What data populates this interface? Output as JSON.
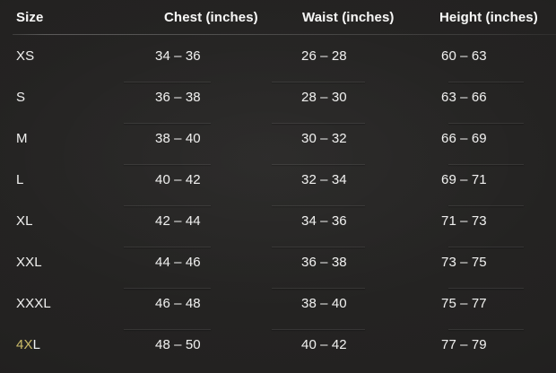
{
  "theme": {
    "background": "#222120",
    "text": "#efefee",
    "header_text": "#f7f7f6",
    "divider": "rgba(255,255,255,0.085)",
    "header_rule": "#4b4a48",
    "four_x_accent": "#c9b966"
  },
  "chart_data": {
    "type": "table",
    "columns": [
      {
        "key": "size",
        "label": "Size"
      },
      {
        "key": "chest",
        "label": "Chest (inches)"
      },
      {
        "key": "waist",
        "label": "Waist (inches)"
      },
      {
        "key": "height",
        "label": "Height (inches)"
      }
    ],
    "rows": [
      {
        "size": "XS",
        "chest": "34 – 36",
        "waist": "26 – 28",
        "height": "60 – 63"
      },
      {
        "size": "S",
        "chest": "36 – 38",
        "waist": "28 – 30",
        "height": "63 – 66"
      },
      {
        "size": "M",
        "chest": "38 – 40",
        "waist": "30 – 32",
        "height": "66 – 69"
      },
      {
        "size": "L",
        "chest": "40 – 42",
        "waist": "32 – 34",
        "height": "69 – 71"
      },
      {
        "size": "XL",
        "chest": "42 – 44",
        "waist": "34 – 36",
        "height": "71 – 73"
      },
      {
        "size": "XXL",
        "chest": "44 – 46",
        "waist": "36 – 38",
        "height": "73 – 75"
      },
      {
        "size": "XXXL",
        "chest": "46 – 48",
        "waist": "38 – 40",
        "height": "75 – 77"
      },
      {
        "size": "4XL",
        "chest": "48 – 50",
        "waist": "40 – 42",
        "height": "77 – 79",
        "size_segments": [
          {
            "text": "4X",
            "color": "#c9b966"
          },
          {
            "text": "L",
            "color": "#eef2f4"
          }
        ]
      }
    ]
  }
}
